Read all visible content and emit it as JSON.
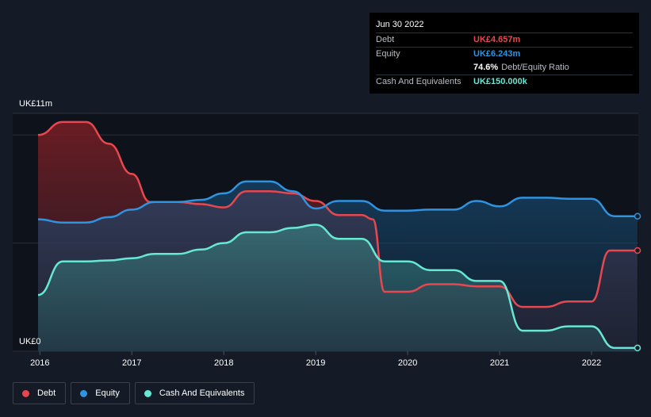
{
  "tooltip": {
    "date": "Jun 30 2022",
    "rows": [
      {
        "label": "Debt",
        "value": "UK£4.657m"
      },
      {
        "label": "Equity",
        "value": "UK£6.243m"
      },
      {
        "label": "",
        "value": "74.6%",
        "suffix": "Debt/Equity Ratio"
      },
      {
        "label": "Cash And Equivalents",
        "value": "UK£150.000k"
      }
    ]
  },
  "y_axis": {
    "top_label": "UK£11m",
    "bottom_label": "UK£0"
  },
  "legend": [
    {
      "label": "Debt",
      "color": "#e8474f"
    },
    {
      "label": "Equity",
      "color": "#2f93e0"
    },
    {
      "label": "Cash And Equivalents",
      "color": "#67e8d4"
    }
  ],
  "chart_data": {
    "type": "area",
    "title": "",
    "xlabel": "",
    "ylabel": "",
    "ylim": [
      0,
      11
    ],
    "x_ticks": [
      "2016",
      "2017",
      "2018",
      "2019",
      "2020",
      "2021",
      "2022"
    ],
    "x_tick_values": [
      2016,
      2017,
      2018,
      2019,
      2020,
      2021,
      2022
    ],
    "xlim": [
      2015.98,
      2022.5
    ],
    "grid": true,
    "legend_position": "bottom-left",
    "series": [
      {
        "name": "Debt",
        "color": "#e8474f",
        "points": [
          [
            2015.98,
            10.0
          ],
          [
            2016.25,
            10.6
          ],
          [
            2016.5,
            10.6
          ],
          [
            2016.75,
            9.6
          ],
          [
            2017.0,
            8.2
          ],
          [
            2017.2,
            6.9
          ],
          [
            2017.5,
            6.9
          ],
          [
            2017.75,
            6.8
          ],
          [
            2018.0,
            6.65
          ],
          [
            2018.25,
            7.4
          ],
          [
            2018.5,
            7.4
          ],
          [
            2018.75,
            7.3
          ],
          [
            2019.0,
            6.95
          ],
          [
            2019.25,
            6.3
          ],
          [
            2019.5,
            6.3
          ],
          [
            2019.62,
            6.1
          ],
          [
            2019.75,
            2.75
          ],
          [
            2020.0,
            2.75
          ],
          [
            2020.25,
            3.1
          ],
          [
            2020.5,
            3.1
          ],
          [
            2020.75,
            3.0
          ],
          [
            2021.0,
            3.0
          ],
          [
            2021.25,
            2.05
          ],
          [
            2021.5,
            2.05
          ],
          [
            2021.75,
            2.3
          ],
          [
            2022.0,
            2.3
          ],
          [
            2022.2,
            4.657
          ],
          [
            2022.5,
            4.657
          ]
        ]
      },
      {
        "name": "Equity",
        "color": "#2f93e0",
        "points": [
          [
            2015.98,
            6.1
          ],
          [
            2016.25,
            5.95
          ],
          [
            2016.5,
            5.95
          ],
          [
            2016.75,
            6.2
          ],
          [
            2017.0,
            6.55
          ],
          [
            2017.25,
            6.9
          ],
          [
            2017.5,
            6.9
          ],
          [
            2017.75,
            7.0
          ],
          [
            2018.0,
            7.3
          ],
          [
            2018.25,
            7.85
          ],
          [
            2018.5,
            7.85
          ],
          [
            2018.75,
            7.4
          ],
          [
            2019.0,
            6.6
          ],
          [
            2019.25,
            6.95
          ],
          [
            2019.5,
            6.95
          ],
          [
            2019.75,
            6.5
          ],
          [
            2020.0,
            6.5
          ],
          [
            2020.25,
            6.55
          ],
          [
            2020.5,
            6.55
          ],
          [
            2020.75,
            6.95
          ],
          [
            2021.0,
            6.7
          ],
          [
            2021.25,
            7.1
          ],
          [
            2021.5,
            7.1
          ],
          [
            2021.75,
            7.05
          ],
          [
            2022.0,
            7.05
          ],
          [
            2022.25,
            6.243
          ],
          [
            2022.5,
            6.243
          ]
        ]
      },
      {
        "name": "Cash And Equivalents",
        "color": "#67e8d4",
        "points": [
          [
            2015.98,
            2.6
          ],
          [
            2016.25,
            4.15
          ],
          [
            2016.5,
            4.15
          ],
          [
            2016.75,
            4.2
          ],
          [
            2017.0,
            4.3
          ],
          [
            2017.25,
            4.5
          ],
          [
            2017.5,
            4.5
          ],
          [
            2017.75,
            4.7
          ],
          [
            2018.0,
            5.0
          ],
          [
            2018.25,
            5.5
          ],
          [
            2018.5,
            5.5
          ],
          [
            2018.75,
            5.7
          ],
          [
            2019.0,
            5.85
          ],
          [
            2019.25,
            5.2
          ],
          [
            2019.5,
            5.2
          ],
          [
            2019.75,
            4.15
          ],
          [
            2020.0,
            4.15
          ],
          [
            2020.25,
            3.75
          ],
          [
            2020.5,
            3.75
          ],
          [
            2020.75,
            3.25
          ],
          [
            2021.0,
            3.25
          ],
          [
            2021.25,
            0.95
          ],
          [
            2021.5,
            0.95
          ],
          [
            2021.75,
            1.15
          ],
          [
            2022.0,
            1.15
          ],
          [
            2022.25,
            0.15
          ],
          [
            2022.5,
            0.15
          ]
        ]
      }
    ]
  }
}
